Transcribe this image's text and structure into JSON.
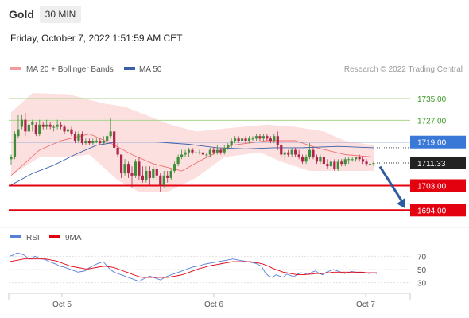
{
  "header": {
    "asset": "Gold",
    "timeframe": "30 MIN"
  },
  "timestamp": "Friday, October 7, 2022 1:51:59 AM CET",
  "legend": {
    "ma20": "MA 20 + Bollinger Bands",
    "ma50": "MA 50"
  },
  "watermark": "Research © 2022 Trading Central",
  "rsi_legend": {
    "rsi": "RSI",
    "ma9": "9MA"
  },
  "colors": {
    "bull": "#3f8f3a",
    "bear": "#b0234a",
    "ma20": "#f07070",
    "ma50": "#3a5fa8",
    "band": "#fbdada",
    "support": "#e3000f",
    "resistance": "#a8d68b",
    "pivot": "#3a78d8",
    "arrow": "#2d5ba0",
    "rsi": "#5a7fd8"
  },
  "chart_data": {
    "type": "candlestick",
    "price_range": [
      1690,
      1742
    ],
    "x_labels": [
      "Oct 5",
      "Oct 6",
      "Oct 7"
    ],
    "last_price": "1711.33",
    "levels": [
      {
        "label": "1735.00",
        "value": 1735.0,
        "kind": "resistance"
      },
      {
        "label": "1727.00",
        "value": 1727.0,
        "kind": "resistance"
      },
      {
        "label": "1719.00",
        "value": 1719.0,
        "kind": "pivot"
      },
      {
        "label": "1703.00",
        "value": 1703.0,
        "kind": "support"
      },
      {
        "label": "1694.00",
        "value": 1694.0,
        "kind": "support"
      }
    ],
    "forecast_arrow": {
      "from": 1710.0,
      "to": 1694.0
    },
    "candles": [
      [
        1712.7,
        1714.4,
        1710.5,
        1713.5
      ],
      [
        1713.5,
        1722.9,
        1712.7,
        1722.0
      ],
      [
        1721.2,
        1728.9,
        1720.3,
        1723.7
      ],
      [
        1724.6,
        1728.9,
        1723.7,
        1727.2
      ],
      [
        1727.2,
        1729.7,
        1721.2,
        1722.9
      ],
      [
        1722.9,
        1727.2,
        1720.3,
        1725.4
      ],
      [
        1725.4,
        1727.2,
        1722.9,
        1726.3
      ],
      [
        1725.4,
        1726.3,
        1721.2,
        1722.0
      ],
      [
        1722.0,
        1727.2,
        1721.2,
        1725.4
      ],
      [
        1725.4,
        1726.3,
        1723.7,
        1724.6
      ],
      [
        1724.6,
        1727.2,
        1723.7,
        1725.4
      ],
      [
        1725.4,
        1726.3,
        1723.7,
        1724.6
      ],
      [
        1724.6,
        1725.4,
        1722.9,
        1724.6
      ],
      [
        1724.6,
        1727.2,
        1723.7,
        1725.4
      ],
      [
        1725.4,
        1726.3,
        1723.7,
        1724.6
      ],
      [
        1724.6,
        1725.4,
        1722.0,
        1722.9
      ],
      [
        1722.9,
        1725.4,
        1722.0,
        1723.7
      ],
      [
        1723.7,
        1724.6,
        1721.2,
        1722.0
      ],
      [
        1722.0,
        1722.9,
        1718.6,
        1719.5
      ],
      [
        1719.5,
        1722.9,
        1718.6,
        1722.0
      ],
      [
        1722.0,
        1722.9,
        1717.8,
        1718.6
      ],
      [
        1718.6,
        1720.3,
        1717.8,
        1719.5
      ],
      [
        1719.5,
        1720.3,
        1717.8,
        1718.6
      ],
      [
        1718.6,
        1720.3,
        1717.8,
        1719.5
      ],
      [
        1719.5,
        1720.3,
        1718.6,
        1719.5
      ],
      [
        1719.5,
        1720.3,
        1717.8,
        1718.6
      ],
      [
        1718.6,
        1721.2,
        1717.8,
        1719.5
      ],
      [
        1719.5,
        1722.0,
        1718.6,
        1721.2
      ],
      [
        1721.2,
        1727.7,
        1720.3,
        1722.9
      ],
      [
        1722.9,
        1722.9,
        1716.1,
        1716.9
      ],
      [
        1716.9,
        1718.6,
        1713.5,
        1714.4
      ],
      [
        1714.4,
        1714.4,
        1705.8,
        1707.5
      ],
      [
        1707.5,
        1712.7,
        1706.7,
        1711.0
      ],
      [
        1711.0,
        1711.8,
        1705.8,
        1707.5
      ],
      [
        1707.5,
        1710.1,
        1702.4,
        1706.7
      ],
      [
        1706.7,
        1712.7,
        1705.8,
        1711.8
      ],
      [
        1711.8,
        1713.5,
        1705.0,
        1706.7
      ],
      [
        1706.7,
        1710.1,
        1704.1,
        1705.0
      ],
      [
        1705.0,
        1710.1,
        1704.1,
        1708.4
      ],
      [
        1708.4,
        1710.1,
        1703.2,
        1705.8
      ],
      [
        1705.8,
        1710.1,
        1705.0,
        1709.2
      ],
      [
        1709.2,
        1711.0,
        1705.0,
        1706.7
      ],
      [
        1706.7,
        1707.5,
        1700.7,
        1703.2
      ],
      [
        1703.2,
        1708.4,
        1702.4,
        1706.7
      ],
      [
        1706.7,
        1708.4,
        1704.1,
        1705.8
      ],
      [
        1705.8,
        1709.2,
        1705.0,
        1708.4
      ],
      [
        1708.4,
        1711.8,
        1707.5,
        1711.0
      ],
      [
        1711.0,
        1714.4,
        1710.1,
        1713.5
      ],
      [
        1713.5,
        1716.1,
        1712.7,
        1714.4
      ],
      [
        1714.4,
        1716.1,
        1713.5,
        1715.2
      ],
      [
        1715.2,
        1716.9,
        1713.5,
        1716.1
      ],
      [
        1716.1,
        1716.9,
        1714.4,
        1715.2
      ],
      [
        1715.2,
        1716.1,
        1714.4,
        1715.2
      ],
      [
        1715.2,
        1716.1,
        1714.4,
        1715.2
      ],
      [
        1715.2,
        1716.1,
        1713.5,
        1714.4
      ],
      [
        1714.4,
        1715.2,
        1713.5,
        1714.4
      ],
      [
        1714.4,
        1716.9,
        1713.5,
        1716.1
      ],
      [
        1716.1,
        1716.9,
        1714.4,
        1715.2
      ],
      [
        1715.2,
        1717.8,
        1714.4,
        1716.1
      ],
      [
        1716.1,
        1716.9,
        1714.4,
        1715.2
      ],
      [
        1715.2,
        1717.8,
        1714.4,
        1716.9
      ],
      [
        1716.9,
        1718.6,
        1716.1,
        1717.8
      ],
      [
        1717.8,
        1720.3,
        1716.9,
        1719.5
      ],
      [
        1719.5,
        1721.2,
        1718.6,
        1720.3
      ],
      [
        1720.3,
        1721.2,
        1718.6,
        1719.5
      ],
      [
        1719.5,
        1721.2,
        1717.8,
        1720.3
      ],
      [
        1720.3,
        1721.2,
        1718.6,
        1719.5
      ],
      [
        1719.5,
        1721.2,
        1718.6,
        1720.3
      ],
      [
        1720.3,
        1721.2,
        1719.5,
        1720.3
      ],
      [
        1720.3,
        1722.0,
        1719.5,
        1721.2
      ],
      [
        1721.2,
        1722.0,
        1719.5,
        1720.3
      ],
      [
        1720.3,
        1722.0,
        1719.5,
        1721.2
      ],
      [
        1721.2,
        1722.0,
        1719.5,
        1720.3
      ],
      [
        1720.3,
        1721.2,
        1718.6,
        1719.5
      ],
      [
        1719.5,
        1722.0,
        1718.6,
        1721.2
      ],
      [
        1721.2,
        1722.9,
        1716.1,
        1717.8
      ],
      [
        1717.8,
        1718.6,
        1713.5,
        1714.4
      ],
      [
        1714.4,
        1716.1,
        1712.7,
        1715.2
      ],
      [
        1715.2,
        1716.1,
        1713.5,
        1714.4
      ],
      [
        1714.4,
        1716.9,
        1713.5,
        1716.1
      ],
      [
        1716.1,
        1716.9,
        1713.5,
        1714.4
      ],
      [
        1714.4,
        1716.1,
        1712.7,
        1713.5
      ],
      [
        1713.5,
        1714.4,
        1711.0,
        1711.8
      ],
      [
        1711.8,
        1714.4,
        1711.0,
        1713.5
      ],
      [
        1713.5,
        1718.6,
        1712.7,
        1716.1
      ],
      [
        1716.1,
        1716.9,
        1712.7,
        1713.5
      ],
      [
        1713.5,
        1714.4,
        1711.0,
        1711.8
      ],
      [
        1711.8,
        1714.4,
        1711.0,
        1713.5
      ],
      [
        1713.5,
        1714.4,
        1710.1,
        1711.0
      ],
      [
        1711.0,
        1712.7,
        1709.2,
        1710.1
      ],
      [
        1710.1,
        1712.7,
        1708.4,
        1711.8
      ],
      [
        1711.8,
        1712.7,
        1708.4,
        1709.2
      ],
      [
        1709.2,
        1712.7,
        1708.4,
        1711.8
      ],
      [
        1711.8,
        1712.7,
        1710.1,
        1711.0
      ],
      [
        1711.0,
        1713.5,
        1710.1,
        1712.7
      ],
      [
        1712.7,
        1713.5,
        1711.0,
        1712.7
      ],
      [
        1712.7,
        1713.5,
        1711.8,
        1712.7
      ],
      [
        1712.7,
        1713.5,
        1711.8,
        1713.5
      ],
      [
        1713.5,
        1714.4,
        1711.8,
        1712.7
      ],
      [
        1712.7,
        1713.5,
        1711.0,
        1711.8
      ],
      [
        1711.8,
        1712.7,
        1710.1,
        1711.0
      ],
      [
        1711.0,
        1711.8,
        1710.1,
        1711.0
      ],
      [
        1711.0,
        1711.8,
        1710.1,
        1711.3
      ]
    ],
    "bollinger": {
      "upper": [
        [
          0,
          1730.0
        ],
        [
          6,
          1737.0
        ],
        [
          16,
          1736.6
        ],
        [
          26,
          1733.2
        ],
        [
          32,
          1732.0
        ],
        [
          44,
          1725.8
        ],
        [
          52,
          1722.9
        ],
        [
          62,
          1724.2
        ],
        [
          72,
          1725.4
        ],
        [
          80,
          1724.6
        ],
        [
          88,
          1722.9
        ],
        [
          94,
          1719.5
        ],
        [
          102,
          1717.8
        ]
      ],
      "lower": [
        [
          0,
          1706.7
        ],
        [
          8,
          1713.5
        ],
        [
          16,
          1713.5
        ],
        [
          22,
          1714.4
        ],
        [
          30,
          1705.0
        ],
        [
          36,
          1700.7
        ],
        [
          44,
          1700.7
        ],
        [
          52,
          1705.8
        ],
        [
          60,
          1713.5
        ],
        [
          70,
          1715.2
        ],
        [
          76,
          1711.8
        ],
        [
          84,
          1708.4
        ],
        [
          94,
          1708.4
        ],
        [
          102,
          1708.4
        ]
      ]
    },
    "ma20": [
      [
        0,
        1706.7
      ],
      [
        8,
        1716.1
      ],
      [
        14,
        1719.5
      ],
      [
        22,
        1722.0
      ],
      [
        28,
        1718.6
      ],
      [
        34,
        1714.4
      ],
      [
        40,
        1711.0
      ],
      [
        48,
        1708.4
      ],
      [
        54,
        1712.7
      ],
      [
        62,
        1717.8
      ],
      [
        72,
        1719.5
      ],
      [
        80,
        1719.5
      ],
      [
        86,
        1716.9
      ],
      [
        94,
        1714.4
      ],
      [
        102,
        1713.5
      ]
    ],
    "ma50": [
      [
        0,
        1703.2
      ],
      [
        6,
        1707.5
      ],
      [
        12,
        1710.5
      ],
      [
        18,
        1714.4
      ],
      [
        24,
        1717.8
      ],
      [
        30,
        1719.1
      ],
      [
        40,
        1719.1
      ],
      [
        50,
        1718.2
      ],
      [
        58,
        1716.9
      ],
      [
        66,
        1716.5
      ],
      [
        74,
        1716.9
      ],
      [
        82,
        1716.9
      ],
      [
        92,
        1717.4
      ],
      [
        102,
        1716.9
      ]
    ],
    "rsi": {
      "range": [
        15,
        85
      ],
      "ticks": [
        70,
        50,
        30
      ],
      "values": [
        70,
        72,
        75,
        74,
        72,
        68,
        66,
        70,
        68,
        66,
        65,
        62,
        60,
        58,
        55,
        54,
        52,
        50,
        48,
        46,
        47,
        48,
        52,
        55,
        58,
        60,
        62,
        56,
        50,
        46,
        44,
        42,
        40,
        38,
        36,
        34,
        32,
        35,
        38,
        40,
        38,
        36,
        34,
        38,
        40,
        42,
        44,
        46,
        48,
        50,
        52,
        54,
        55,
        56,
        58,
        59,
        60,
        61,
        62,
        63,
        64,
        65,
        66,
        65,
        64,
        63,
        62,
        61,
        60,
        58,
        55,
        45,
        40,
        38,
        42,
        40,
        38,
        43,
        41,
        39,
        43,
        45,
        44,
        42,
        46,
        48,
        44,
        42,
        46,
        48,
        50,
        48,
        46,
        44,
        45,
        47,
        46,
        45,
        46,
        45,
        44,
        45,
        44
      ],
      "ma": [
        62,
        63,
        64,
        65,
        66,
        66,
        66,
        66,
        66,
        66,
        66,
        65,
        64,
        63,
        61,
        59,
        57,
        55,
        54,
        53,
        52,
        51,
        51,
        52,
        53,
        54,
        55,
        55,
        54,
        53,
        51,
        49,
        47,
        45,
        43,
        41,
        39,
        38,
        38,
        38,
        38,
        38,
        38,
        38,
        38,
        39,
        40,
        41,
        42,
        44,
        46,
        48,
        50,
        52,
        53,
        55,
        56,
        57,
        58,
        59,
        60,
        61,
        62,
        62,
        62,
        62,
        62,
        62,
        61,
        60,
        59,
        57,
        55,
        52,
        50,
        48,
        46,
        45,
        44,
        43,
        42,
        42,
        42,
        43,
        43,
        44,
        44,
        44,
        45,
        45,
        46,
        46,
        46,
        46,
        46,
        46,
        46,
        46,
        46,
        45,
        45,
        45,
        45
      ]
    }
  }
}
